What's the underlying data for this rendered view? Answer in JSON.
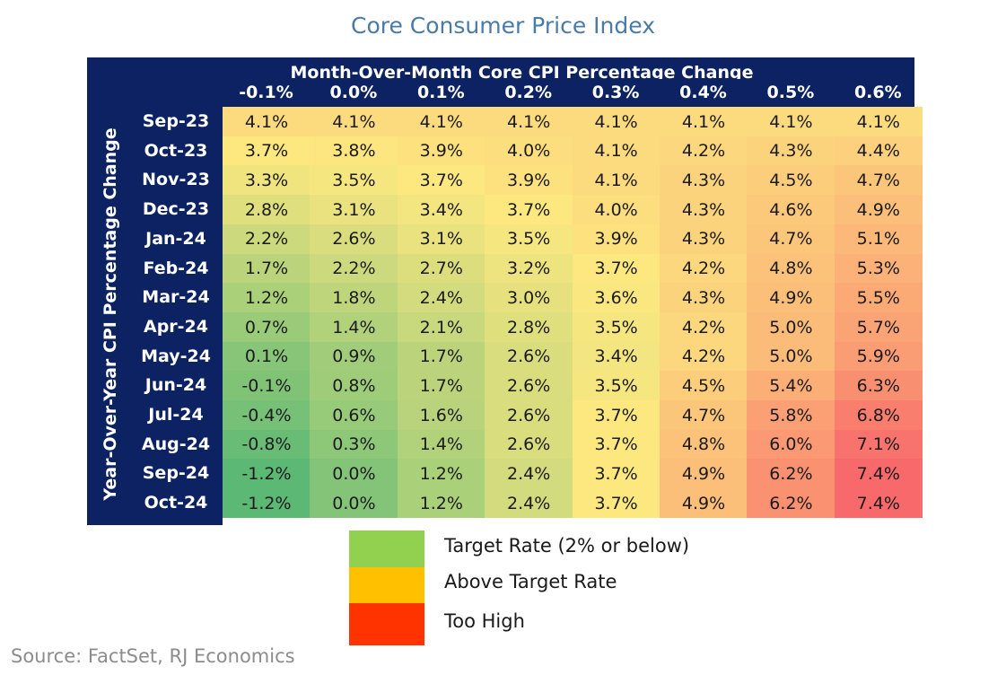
{
  "title": "Core Consumer Price Index",
  "source": "Source: FactSet, RJ Economics",
  "chart_data": {
    "type": "heatmap",
    "title": "Core Consumer Price Index",
    "xlabel": "Month-Over-Month Core CPI Percentage Change",
    "ylabel": "Year-Over-Year CPI Percentage Change",
    "columns": [
      "-0.1%",
      "0.0%",
      "0.1%",
      "0.2%",
      "0.3%",
      "0.4%",
      "0.5%",
      "0.6%"
    ],
    "rows": [
      "Sep-23",
      "Oct-23",
      "Nov-23",
      "Dec-23",
      "Jan-24",
      "Feb-24",
      "Mar-24",
      "Apr-24",
      "May-24",
      "Jun-24",
      "Jul-24",
      "Aug-24",
      "Sep-24",
      "Oct-24"
    ],
    "values": [
      [
        4.1,
        4.1,
        4.1,
        4.1,
        4.1,
        4.1,
        4.1,
        4.1
      ],
      [
        3.7,
        3.8,
        3.9,
        4.0,
        4.1,
        4.2,
        4.3,
        4.4
      ],
      [
        3.3,
        3.5,
        3.7,
        3.9,
        4.1,
        4.3,
        4.5,
        4.7
      ],
      [
        2.8,
        3.1,
        3.4,
        3.7,
        4.0,
        4.3,
        4.6,
        4.9
      ],
      [
        2.2,
        2.6,
        3.1,
        3.5,
        3.9,
        4.3,
        4.7,
        5.1
      ],
      [
        1.7,
        2.2,
        2.7,
        3.2,
        3.7,
        4.2,
        4.8,
        5.3
      ],
      [
        1.2,
        1.8,
        2.4,
        3.0,
        3.6,
        4.3,
        4.9,
        5.5
      ],
      [
        0.7,
        1.4,
        2.1,
        2.8,
        3.5,
        4.2,
        5.0,
        5.7
      ],
      [
        0.1,
        0.9,
        1.7,
        2.6,
        3.4,
        4.2,
        5.0,
        5.9
      ],
      [
        -0.1,
        0.8,
        1.7,
        2.6,
        3.5,
        4.5,
        5.4,
        6.3
      ],
      [
        -0.4,
        0.6,
        1.6,
        2.6,
        3.7,
        4.7,
        5.8,
        6.8
      ],
      [
        -0.8,
        0.3,
        1.4,
        2.6,
        3.7,
        4.8,
        6.0,
        7.1
      ],
      [
        -1.2,
        0.0,
        1.2,
        2.4,
        3.7,
        4.9,
        6.2,
        7.4
      ],
      [
        -1.2,
        0.0,
        1.2,
        2.4,
        3.7,
        4.9,
        6.2,
        7.4
      ]
    ],
    "value_format": "percent_one_decimal",
    "color_scale": {
      "low": -1.2,
      "mid": 3.7,
      "high": 7.4,
      "low_color": "#5cb875",
      "mid_color": "#fde880",
      "high_color": "#f8696b"
    },
    "legend": [
      {
        "label": "Target Rate (2% or below)",
        "color": "#92d050"
      },
      {
        "label": "Above Target Rate",
        "color": "#ffc000"
      },
      {
        "label": "Too High",
        "color": "#ff3300"
      }
    ]
  }
}
